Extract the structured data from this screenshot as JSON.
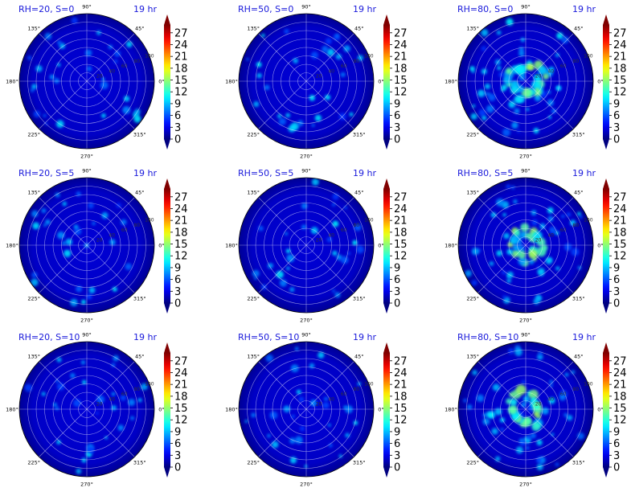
{
  "chart_data": [
    {
      "type": "heatmap",
      "title": "RH=20, S=0",
      "time_label": "19 hr",
      "pattern": "sparse",
      "seed": 11
    },
    {
      "type": "heatmap",
      "title": "RH=50, S=0",
      "time_label": "19 hr",
      "pattern": "sparse",
      "seed": 23
    },
    {
      "type": "heatmap",
      "title": "RH=80, S=0",
      "time_label": "19 hr",
      "pattern": "ring",
      "seed": 37
    },
    {
      "type": "heatmap",
      "title": "RH=20, S=5",
      "time_label": "19 hr",
      "pattern": "sparse",
      "seed": 41
    },
    {
      "type": "heatmap",
      "title": "RH=50, S=5",
      "time_label": "19 hr",
      "pattern": "sparse",
      "seed": 53
    },
    {
      "type": "heatmap",
      "title": "RH=80, S=5",
      "time_label": "19 hr",
      "pattern": "ring",
      "seed": 67
    },
    {
      "type": "heatmap",
      "title": "RH=20, S=10",
      "time_label": "19 hr",
      "pattern": "sparse",
      "seed": 71
    },
    {
      "type": "heatmap",
      "title": "RH=50, S=10",
      "time_label": "19 hr",
      "pattern": "sparse",
      "seed": 83
    },
    {
      "type": "heatmap",
      "title": "RH=80, S=10",
      "time_label": "19 hr",
      "pattern": "ring",
      "seed": 97
    }
  ],
  "axes": {
    "projection": "polar",
    "angle_ticks": [
      "0°",
      "45°",
      "90°",
      "135°",
      "180°",
      "225°",
      "270°",
      "315°"
    ],
    "radial_rings": 8,
    "radial_tick_labels": [
      "20",
      "40",
      "60",
      "80",
      "100"
    ],
    "grid": true
  },
  "colorbar": {
    "colormap": "jet",
    "vmin": 0,
    "vmax": 29,
    "ticks": [
      "0",
      "3",
      "6",
      "9",
      "12",
      "15",
      "18",
      "21",
      "24",
      "27"
    ],
    "extend": "both"
  }
}
